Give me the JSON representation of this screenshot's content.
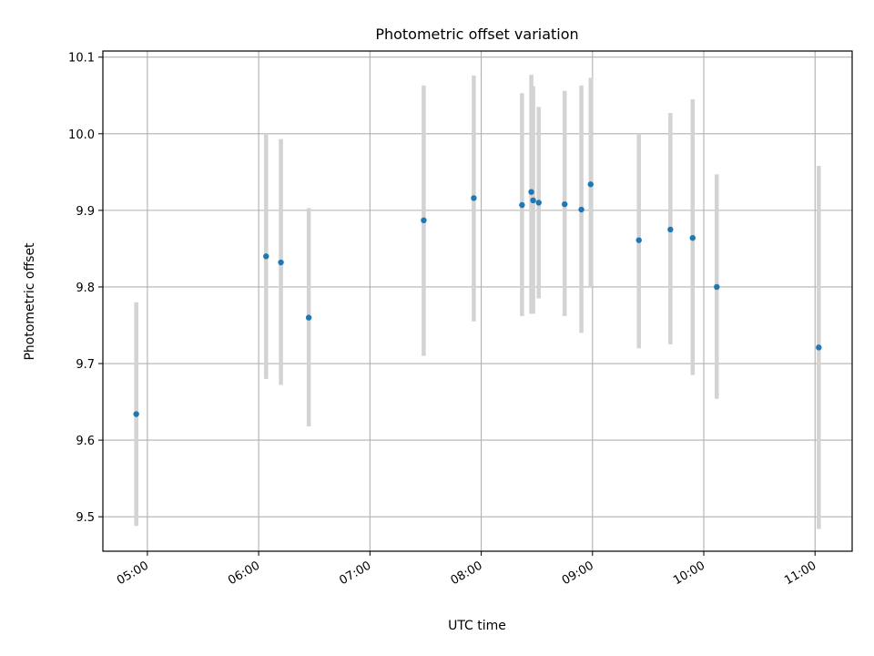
{
  "chart_data": {
    "type": "scatter",
    "title": "Photometric offset variation",
    "xlabel": "UTC time",
    "ylabel": "Photometric offset",
    "xlim": [
      "04:36",
      "11:20"
    ],
    "ylim": [
      9.455,
      10.108
    ],
    "x_ticks": [
      "05:00",
      "06:00",
      "07:00",
      "08:00",
      "09:00",
      "10:00",
      "11:00"
    ],
    "y_ticks": [
      "9.5",
      "9.6",
      "9.7",
      "9.8",
      "9.9",
      "10.0",
      "10.1"
    ],
    "grid": true,
    "colors": {
      "marker": "#1f77b4",
      "errorbar": "#d3d3d3",
      "grid": "#b0b0b0"
    },
    "series": [
      {
        "points": [
          {
            "x": "04:54",
            "y": 9.634,
            "ylow": 9.488,
            "yhigh": 9.78
          },
          {
            "x": "06:04",
            "y": 9.84,
            "ylow": 9.68,
            "yhigh": 10.0
          },
          {
            "x": "06:12",
            "y": 9.832,
            "ylow": 9.672,
            "yhigh": 9.993
          },
          {
            "x": "06:27",
            "y": 9.76,
            "ylow": 9.618,
            "yhigh": 9.903
          },
          {
            "x": "07:29",
            "y": 9.887,
            "ylow": 9.71,
            "yhigh": 10.063
          },
          {
            "x": "07:56",
            "y": 9.916,
            "ylow": 9.755,
            "yhigh": 10.076
          },
          {
            "x": "08:22",
            "y": 9.907,
            "ylow": 9.762,
            "yhigh": 10.053
          },
          {
            "x": "08:27",
            "y": 9.924,
            "ylow": 9.765,
            "yhigh": 10.077
          },
          {
            "x": "08:28",
            "y": 9.913,
            "ylow": 9.765,
            "yhigh": 10.062
          },
          {
            "x": "08:31",
            "y": 9.91,
            "ylow": 9.785,
            "yhigh": 10.035
          },
          {
            "x": "08:45",
            "y": 9.908,
            "ylow": 9.762,
            "yhigh": 10.056
          },
          {
            "x": "08:54",
            "y": 9.901,
            "ylow": 9.74,
            "yhigh": 10.063
          },
          {
            "x": "08:59",
            "y": 9.934,
            "ylow": 9.8,
            "yhigh": 10.073
          },
          {
            "x": "09:25",
            "y": 9.861,
            "ylow": 9.72,
            "yhigh": 10.0
          },
          {
            "x": "09:42",
            "y": 9.875,
            "ylow": 9.725,
            "yhigh": 10.027
          },
          {
            "x": "09:54",
            "y": 9.864,
            "ylow": 9.685,
            "yhigh": 10.045
          },
          {
            "x": "10:07",
            "y": 9.8,
            "ylow": 9.654,
            "yhigh": 9.947
          },
          {
            "x": "11:02",
            "y": 9.721,
            "ylow": 9.484,
            "yhigh": 9.958
          }
        ]
      }
    ]
  }
}
